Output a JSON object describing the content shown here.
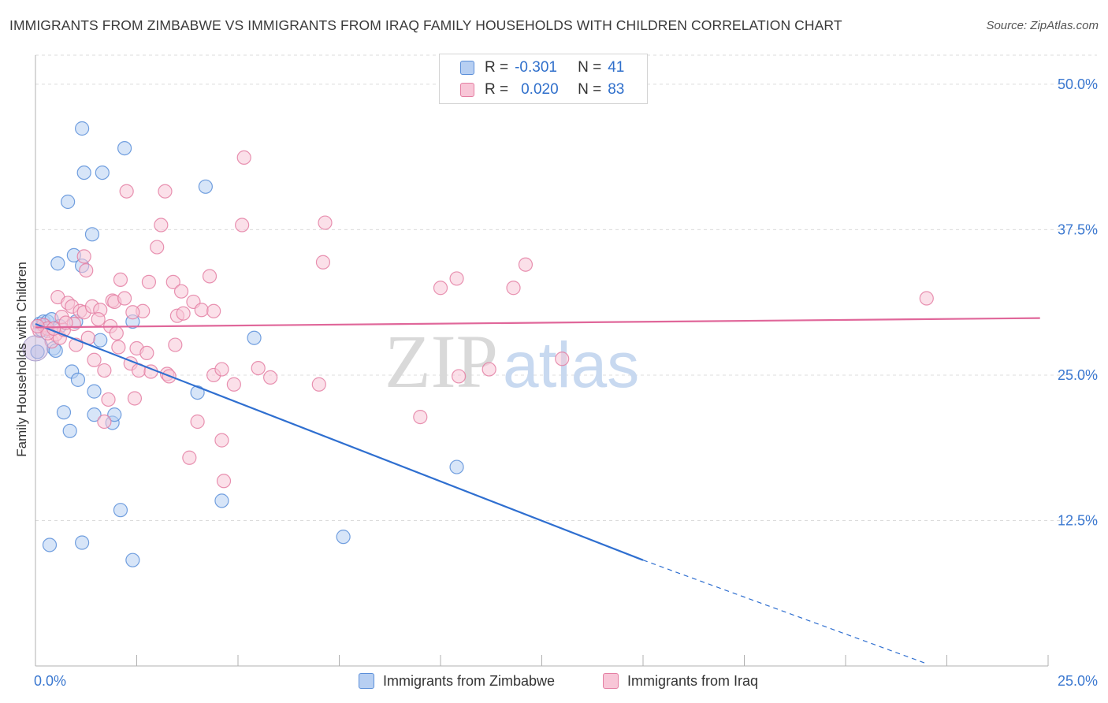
{
  "title": "IMMIGRANTS FROM ZIMBABWE VS IMMIGRANTS FROM IRAQ FAMILY HOUSEHOLDS WITH CHILDREN CORRELATION CHART",
  "source": "Source: ZipAtlas.com",
  "watermark": {
    "zip": "ZIP",
    "atlas": "atlas"
  },
  "legend": {
    "r_label": "R =",
    "n_label": "N =",
    "rows": [
      {
        "r": "-0.301",
        "n": "41",
        "color": "#5b8fd9",
        "fill": "#b7cff2"
      },
      {
        "r": "0.020",
        "n": "83",
        "color": "#e47fa3",
        "fill": "#f8c6d7"
      }
    ]
  },
  "bottom_legend": [
    "Immigrants from Zimbabwe",
    "Immigrants from Iraq"
  ],
  "chart_data": {
    "type": "scatter",
    "title": "IMMIGRANTS FROM ZIMBABWE VS IMMIGRANTS FROM IRAQ FAMILY HOUSEHOLDS WITH CHILDREN CORRELATION CHART",
    "xlabel": "",
    "ylabel": "Family Households with Children",
    "xlim": [
      0,
      25
    ],
    "ylim": [
      0,
      52.5
    ],
    "x_tick_labels": [
      "0.0%",
      "25.0%"
    ],
    "y_ticks": [
      12.5,
      25.0,
      37.5,
      50.0
    ],
    "y_tick_labels": [
      "12.5%",
      "25.0%",
      "37.5%",
      "50.0%"
    ],
    "grid": true,
    "series": [
      {
        "name": "Immigrants from Zimbabwe",
        "stroke": "#5b8fd9",
        "fill": "#b7cff2",
        "line": "#2f6fd0",
        "trend": {
          "x_start": 0,
          "y_start": 29.4,
          "x_solid_end": 15.0,
          "y_solid_end": 9.1,
          "x_end": 22.0,
          "y_end": 0.2
        },
        "points": [
          [
            0.05,
            27.0
          ],
          [
            0.1,
            29.4
          ],
          [
            0.2,
            29.6
          ],
          [
            0.25,
            29.2
          ],
          [
            0.3,
            29.6
          ],
          [
            0.4,
            29.8
          ],
          [
            0.45,
            27.3
          ],
          [
            0.5,
            27.1
          ],
          [
            0.55,
            34.6
          ],
          [
            0.6,
            29.2
          ],
          [
            0.7,
            21.8
          ],
          [
            0.8,
            39.9
          ],
          [
            0.85,
            20.2
          ],
          [
            0.9,
            25.3
          ],
          [
            0.95,
            35.3
          ],
          [
            1.0,
            29.6
          ],
          [
            1.05,
            24.6
          ],
          [
            1.15,
            34.4
          ],
          [
            1.15,
            10.6
          ],
          [
            1.15,
            46.2
          ],
          [
            1.2,
            42.4
          ],
          [
            1.4,
            37.1
          ],
          [
            1.45,
            23.6
          ],
          [
            1.45,
            21.6
          ],
          [
            1.6,
            28.0
          ],
          [
            1.65,
            42.4
          ],
          [
            1.9,
            20.9
          ],
          [
            1.95,
            21.6
          ],
          [
            2.1,
            13.4
          ],
          [
            2.2,
            44.5
          ],
          [
            2.4,
            9.1
          ],
          [
            2.4,
            29.6
          ],
          [
            4.0,
            23.5
          ],
          [
            4.2,
            41.2
          ],
          [
            4.6,
            14.2
          ],
          [
            5.4,
            28.2
          ],
          [
            7.6,
            11.1
          ],
          [
            10.4,
            17.1
          ],
          [
            0.35,
            10.4
          ],
          [
            0.15,
            28.9
          ],
          [
            0.3,
            28.8
          ]
        ]
      },
      {
        "name": "Immigrants from Iraq",
        "stroke": "#e47fa3",
        "fill": "#f8c6d7",
        "line": "#e0679a",
        "trend": {
          "x_start": 0,
          "y_start": 29.1,
          "x_end": 24.8,
          "y_end": 29.9
        },
        "points": [
          [
            0.1,
            28.8
          ],
          [
            0.2,
            29.3
          ],
          [
            0.3,
            29.0
          ],
          [
            0.4,
            27.9
          ],
          [
            0.5,
            28.5
          ],
          [
            0.55,
            31.7
          ],
          [
            0.6,
            28.2
          ],
          [
            0.7,
            28.9
          ],
          [
            0.8,
            31.2
          ],
          [
            0.9,
            30.9
          ],
          [
            0.95,
            29.4
          ],
          [
            1.0,
            27.6
          ],
          [
            1.1,
            30.5
          ],
          [
            1.2,
            30.4
          ],
          [
            1.2,
            35.2
          ],
          [
            1.25,
            34.0
          ],
          [
            1.4,
            30.9
          ],
          [
            1.45,
            26.3
          ],
          [
            1.6,
            30.6
          ],
          [
            1.7,
            21.0
          ],
          [
            1.7,
            25.4
          ],
          [
            1.8,
            22.9
          ],
          [
            1.85,
            29.2
          ],
          [
            1.9,
            31.4
          ],
          [
            1.95,
            31.3
          ],
          [
            2.05,
            27.4
          ],
          [
            2.1,
            33.2
          ],
          [
            2.2,
            31.6
          ],
          [
            2.25,
            40.8
          ],
          [
            2.35,
            26.0
          ],
          [
            2.45,
            23.0
          ],
          [
            2.5,
            27.3
          ],
          [
            2.55,
            25.4
          ],
          [
            2.65,
            30.5
          ],
          [
            2.75,
            26.9
          ],
          [
            2.8,
            33.0
          ],
          [
            2.85,
            25.3
          ],
          [
            3.0,
            36.0
          ],
          [
            3.1,
            37.9
          ],
          [
            3.2,
            40.8
          ],
          [
            3.25,
            25.1
          ],
          [
            3.3,
            24.9
          ],
          [
            3.4,
            33.0
          ],
          [
            3.45,
            27.6
          ],
          [
            3.5,
            30.1
          ],
          [
            3.6,
            32.2
          ],
          [
            3.65,
            30.3
          ],
          [
            3.8,
            17.9
          ],
          [
            3.9,
            31.3
          ],
          [
            4.0,
            21.0
          ],
          [
            4.1,
            30.6
          ],
          [
            4.3,
            33.5
          ],
          [
            4.4,
            25.0
          ],
          [
            4.4,
            30.5
          ],
          [
            4.6,
            25.5
          ],
          [
            4.6,
            19.4
          ],
          [
            4.65,
            15.9
          ],
          [
            4.9,
            24.2
          ],
          [
            5.1,
            37.9
          ],
          [
            5.15,
            43.7
          ],
          [
            5.5,
            25.6
          ],
          [
            5.8,
            24.8
          ],
          [
            7.0,
            24.2
          ],
          [
            7.1,
            34.7
          ],
          [
            7.15,
            38.1
          ],
          [
            9.5,
            21.4
          ],
          [
            10.0,
            32.5
          ],
          [
            10.4,
            33.3
          ],
          [
            10.45,
            24.9
          ],
          [
            11.2,
            25.5
          ],
          [
            11.8,
            32.5
          ],
          [
            12.1,
            34.5
          ],
          [
            13.0,
            26.4
          ],
          [
            22.0,
            31.6
          ],
          [
            0.3,
            28.6
          ],
          [
            0.45,
            29.0
          ],
          [
            0.65,
            30.0
          ],
          [
            0.75,
            29.5
          ],
          [
            1.3,
            28.2
          ],
          [
            1.55,
            29.8
          ],
          [
            0.05,
            29.2
          ],
          [
            2.0,
            28.6
          ],
          [
            2.4,
            30.4
          ]
        ]
      }
    ]
  }
}
